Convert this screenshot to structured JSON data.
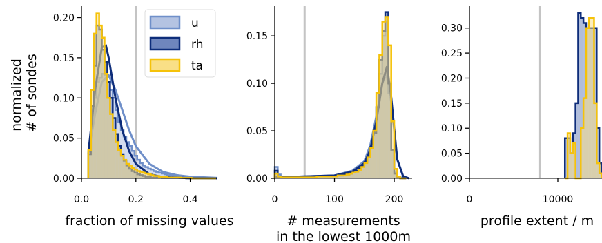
{
  "ylabel": "normalized\n# of sondes",
  "legend": [
    {
      "label": "u",
      "color": "#6f8fc9",
      "fill": "#b4c3e2"
    },
    {
      "label": "rh",
      "color": "#0e2d7a",
      "fill": "#6f86bd"
    },
    {
      "label": "ta",
      "color": "#f5c20a",
      "fill": "#f9df86"
    }
  ],
  "chart_data": [
    {
      "type": "histogram",
      "xlabel": "fraction of missing values",
      "xlim": [
        0,
        0.5
      ],
      "ylim": [
        0,
        0.215
      ],
      "xticks": [
        0,
        0.2,
        0.4
      ],
      "xtick_labels": [
        "0.0",
        "0.2",
        "0.4"
      ],
      "yticks": [
        0,
        0.05,
        0.1,
        0.15,
        0.2
      ],
      "ytick_labels": [
        "0.00",
        "0.05",
        "0.10",
        "0.15",
        "0.20"
      ],
      "threshold": 0.2,
      "bin_edges": [
        0.025,
        0.035,
        0.045,
        0.055,
        0.065,
        0.075,
        0.085,
        0.095,
        0.105,
        0.115,
        0.125,
        0.135,
        0.145,
        0.155,
        0.165,
        0.175,
        0.185,
        0.195,
        0.205,
        0.215,
        0.225,
        0.235,
        0.245,
        0.255,
        0.265,
        0.275,
        0.285,
        0.295,
        0.305,
        0.315,
        0.325,
        0.335,
        0.345,
        0.355,
        0.365,
        0.375,
        0.385,
        0.395,
        0.405,
        0.415,
        0.425,
        0.435,
        0.445,
        0.455,
        0.465,
        0.475,
        0.485,
        0.495
      ],
      "series": [
        {
          "name": "u",
          "values": [
            0.03,
            0.07,
            0.1,
            0.12,
            0.125,
            0.13,
            0.128,
            0.12,
            0.11,
            0.1,
            0.085,
            0.07,
            0.06,
            0.052,
            0.045,
            0.04,
            0.034,
            0.028,
            0.023,
            0.019,
            0.016,
            0.014,
            0.012,
            0.011,
            0.009,
            0.008,
            0.007,
            0.006,
            0.005,
            0.004,
            0.004,
            0.003,
            0.003,
            0.002,
            0.002,
            0.002,
            0.0015,
            0.0015,
            0.001,
            0.001,
            0.001,
            0.001,
            0.001,
            0.0005,
            0.0005,
            0.0005,
            0.0005
          ],
          "fit": [
            [
              0.025,
              0.03
            ],
            [
              0.05,
              0.08
            ],
            [
              0.075,
              0.12
            ],
            [
              0.1,
              0.128
            ],
            [
              0.125,
              0.11
            ],
            [
              0.15,
              0.085
            ],
            [
              0.175,
              0.06
            ],
            [
              0.2,
              0.04
            ],
            [
              0.25,
              0.018
            ],
            [
              0.3,
              0.008
            ],
            [
              0.35,
              0.004
            ],
            [
              0.4,
              0.002
            ],
            [
              0.5,
              0.0005
            ]
          ]
        },
        {
          "name": "rh",
          "values": [
            0.03,
            0.09,
            0.14,
            0.19,
            0.185,
            0.16,
            0.145,
            0.12,
            0.1,
            0.075,
            0.055,
            0.04,
            0.03,
            0.022,
            0.016,
            0.012,
            0.009,
            0.007,
            0.005,
            0.004,
            0.003,
            0.002,
            0.002,
            0.001,
            0.001,
            0.001,
            0.001,
            0.0005,
            0.0005,
            0.0005,
            0.0005,
            0.0005,
            0.0005,
            0.0005,
            0.0005,
            0.0005,
            0.0,
            0.0,
            0.0,
            0.0,
            0.0,
            0.0,
            0.0,
            0.0,
            0.0,
            0.0,
            0.0
          ],
          "fit": [
            [
              0.025,
              0.03
            ],
            [
              0.05,
              0.11
            ],
            [
              0.075,
              0.163
            ],
            [
              0.09,
              0.165
            ],
            [
              0.1,
              0.15
            ],
            [
              0.125,
              0.1
            ],
            [
              0.15,
              0.06
            ],
            [
              0.175,
              0.034
            ],
            [
              0.2,
              0.018
            ],
            [
              0.25,
              0.005
            ],
            [
              0.3,
              0.0015
            ],
            [
              0.4,
              0.0002
            ],
            [
              0.5,
              0.0
            ]
          ]
        },
        {
          "name": "ta",
          "values": [
            0.035,
            0.11,
            0.18,
            0.205,
            0.19,
            0.175,
            0.13,
            0.1,
            0.08,
            0.06,
            0.045,
            0.035,
            0.028,
            0.023,
            0.018,
            0.016,
            0.013,
            0.011,
            0.009,
            0.008,
            0.007,
            0.006,
            0.005,
            0.004,
            0.003,
            0.003,
            0.002,
            0.002,
            0.002,
            0.001,
            0.001,
            0.001,
            0.001,
            0.001,
            0.0005,
            0.0005,
            0.0005,
            0.0005,
            0.0,
            0.0,
            0.0,
            0.0,
            0.0,
            0.0,
            0.0,
            0.0,
            0.0
          ]
        }
      ]
    },
    {
      "type": "histogram",
      "xlabel": "# measurements\nin the lowest 1000m",
      "xlim": [
        0,
        230
      ],
      "ylim": [
        0,
        0.182
      ],
      "xticks": [
        0,
        100,
        200
      ],
      "xtick_labels": [
        "0",
        "100",
        "200"
      ],
      "yticks": [
        0,
        0.05,
        0.1,
        0.15
      ],
      "ytick_labels": [
        "0.00",
        "0.05",
        "0.10",
        "0.15"
      ],
      "threshold": 50,
      "bin_edges": [
        0,
        5,
        10,
        15,
        20,
        25,
        30,
        35,
        40,
        45,
        50,
        55,
        60,
        65,
        70,
        75,
        80,
        85,
        90,
        95,
        100,
        105,
        110,
        115,
        120,
        125,
        130,
        135,
        140,
        145,
        150,
        155,
        160,
        165,
        170,
        175,
        180,
        185,
        190,
        195,
        200,
        205,
        210,
        215,
        220
      ],
      "series": [
        {
          "name": "u",
          "values": [
            0.012,
            0.004,
            0.002,
            0.001,
            0.001,
            0.001,
            0.001,
            0.001,
            0.001,
            0.001,
            0.001,
            0.002,
            0.002,
            0.002,
            0.002,
            0.002,
            0.002,
            0.002,
            0.003,
            0.003,
            0.003,
            0.003,
            0.004,
            0.004,
            0.005,
            0.006,
            0.007,
            0.008,
            0.011,
            0.014,
            0.018,
            0.025,
            0.035,
            0.05,
            0.075,
            0.11,
            0.15,
            0.165,
            0.09,
            0.03,
            0.006,
            0.002,
            0.001,
            0.0
          ],
          "fit": [
            [
              0,
              0.001
            ],
            [
              100,
              0.003
            ],
            [
              130,
              0.008
            ],
            [
              150,
              0.018
            ],
            [
              160,
              0.035
            ],
            [
              170,
              0.065
            ],
            [
              180,
              0.1
            ],
            [
              187,
              0.11
            ],
            [
              195,
              0.08
            ],
            [
              205,
              0.02
            ],
            [
              215,
              0.002
            ],
            [
              225,
              0.0
            ]
          ]
        },
        {
          "name": "rh",
          "values": [
            0.008,
            0.002,
            0.001,
            0.001,
            0.001,
            0.001,
            0.001,
            0.001,
            0.001,
            0.001,
            0.001,
            0.001,
            0.001,
            0.002,
            0.002,
            0.002,
            0.002,
            0.002,
            0.002,
            0.002,
            0.003,
            0.003,
            0.003,
            0.004,
            0.004,
            0.005,
            0.006,
            0.008,
            0.01,
            0.013,
            0.017,
            0.023,
            0.033,
            0.048,
            0.075,
            0.125,
            0.155,
            0.175,
            0.1,
            0.03,
            0.005,
            0.001,
            0.0,
            0.0
          ],
          "fit": [
            [
              0,
              0.001
            ],
            [
              100,
              0.003
            ],
            [
              130,
              0.007
            ],
            [
              150,
              0.016
            ],
            [
              160,
              0.03
            ],
            [
              170,
              0.06
            ],
            [
              180,
              0.1
            ],
            [
              188,
              0.118
            ],
            [
              195,
              0.085
            ],
            [
              205,
              0.02
            ],
            [
              215,
              0.002
            ],
            [
              225,
              0.0
            ]
          ]
        },
        {
          "name": "ta",
          "values": [
            0.005,
            0.002,
            0.001,
            0.001,
            0.001,
            0.001,
            0.001,
            0.001,
            0.001,
            0.001,
            0.001,
            0.001,
            0.001,
            0.001,
            0.002,
            0.002,
            0.002,
            0.002,
            0.002,
            0.002,
            0.002,
            0.003,
            0.003,
            0.003,
            0.004,
            0.005,
            0.006,
            0.007,
            0.009,
            0.012,
            0.016,
            0.022,
            0.032,
            0.05,
            0.09,
            0.13,
            0.165,
            0.17,
            0.14,
            0.06,
            0.01,
            0.002,
            0.0,
            0.0
          ]
        }
      ]
    },
    {
      "type": "histogram",
      "xlabel": "profile extent / m",
      "xlim": [
        0,
        15000
      ],
      "ylim": [
        0,
        0.345
      ],
      "xticks": [
        0,
        10000
      ],
      "xtick_labels": [
        "0",
        "10000"
      ],
      "yticks": [
        0,
        0.05,
        0.1,
        0.15,
        0.2,
        0.25,
        0.3
      ],
      "ytick_labels": [
        "0.00",
        "0.05",
        "0.10",
        "0.15",
        "0.20",
        "0.25",
        "0.30"
      ],
      "threshold": 8000,
      "bin_edges": [
        10800,
        11100,
        11400,
        11700,
        12000,
        12300,
        12600,
        12900,
        13200,
        13500,
        13800,
        14100,
        14400,
        14700,
        15000
      ],
      "series": [
        {
          "name": "rh",
          "values": [
            0.08,
            0.08,
            0.05,
            0.09,
            0.15,
            0.33,
            0.32,
            0.31,
            0.3,
            0.3,
            0.3,
            0.3,
            0.1,
            0.03
          ]
        },
        {
          "name": "ta",
          "values": [
            0.0,
            0.09,
            0.05,
            0.07,
            0.0,
            0.0,
            0.1,
            0.16,
            0.3,
            0.32,
            0.32,
            0.15,
            0.03,
            0.01
          ]
        }
      ]
    }
  ]
}
